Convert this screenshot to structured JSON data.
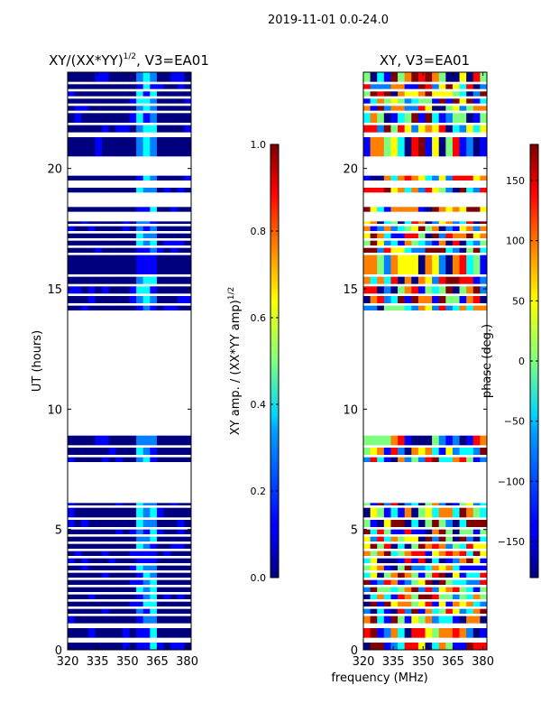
{
  "suptitle": "2019-11-01 0.0-24.0",
  "xlabel": "frequency (MHz)",
  "chart_data": [
    {
      "type": "heatmap",
      "title_main": "XY/(XX*YY)",
      "title_sup": "1/2",
      "title_tail": ", V3=EA01",
      "ylabel": "UT (hours)",
      "xlim": [
        320,
        382
      ],
      "ylim": [
        0,
        24
      ],
      "x_ticks": [
        320,
        335,
        350,
        365,
        380
      ],
      "y_ticks": [
        0,
        5,
        10,
        15,
        20
      ],
      "data_bands": [
        [
          0,
          0.3
        ],
        [
          0.5,
          0.9
        ],
        [
          1.1,
          1.4
        ],
        [
          1.5,
          1.7
        ],
        [
          1.8,
          2.0
        ],
        [
          2.1,
          2.3
        ],
        [
          2.4,
          2.6
        ],
        [
          2.7,
          2.9
        ],
        [
          3.0,
          3.2
        ],
        [
          3.3,
          3.5
        ],
        [
          3.6,
          3.8
        ],
        [
          3.9,
          4.1
        ],
        [
          4.2,
          4.4
        ],
        [
          4.5,
          4.7
        ],
        [
          4.8,
          5.0
        ],
        [
          5.1,
          5.4
        ],
        [
          5.5,
          5.9
        ],
        [
          6.0,
          6.1
        ],
        [
          7.8,
          8.0
        ],
        [
          8.1,
          8.4
        ],
        [
          8.5,
          8.9
        ],
        [
          14.1,
          14.3
        ],
        [
          14.4,
          14.7
        ],
        [
          14.8,
          15.1
        ],
        [
          15.2,
          15.5
        ],
        [
          15.6,
          16.4
        ],
        [
          16.5,
          16.7
        ],
        [
          16.8,
          17.0
        ],
        [
          17.1,
          17.3
        ],
        [
          17.4,
          17.6
        ],
        [
          17.7,
          17.8
        ],
        [
          18.2,
          18.4
        ],
        [
          19.0,
          19.2
        ],
        [
          19.5,
          19.7
        ],
        [
          20.5,
          21.3
        ],
        [
          21.5,
          21.8
        ],
        [
          21.9,
          22.3
        ],
        [
          22.4,
          22.6
        ],
        [
          22.7,
          22.9
        ],
        [
          23.0,
          23.2
        ],
        [
          23.3,
          23.5
        ],
        [
          23.6,
          24.0
        ]
      ],
      "cbar": {
        "label_main": "XY amp. / (XX*YY amp)",
        "label_sup": "1/2",
        "min": 0.0,
        "max": 1.0,
        "ticks": [
          "0.0",
          "0.2",
          "0.4",
          "0.6",
          "0.8",
          "1.0"
        ],
        "tick_values": [
          0.0,
          0.2,
          0.4,
          0.6,
          0.8,
          1.0
        ]
      }
    },
    {
      "type": "heatmap",
      "title": "XY, V3=EA01",
      "xlim": [
        320,
        382
      ],
      "ylim": [
        0,
        24
      ],
      "x_ticks": [
        320,
        335,
        350,
        365,
        380
      ],
      "y_ticks": [
        0,
        5,
        10,
        15,
        20
      ],
      "data_bands": [
        [
          0,
          0.3
        ],
        [
          0.5,
          0.9
        ],
        [
          1.1,
          1.4
        ],
        [
          1.5,
          1.7
        ],
        [
          1.8,
          2.0
        ],
        [
          2.1,
          2.3
        ],
        [
          2.4,
          2.6
        ],
        [
          2.7,
          2.9
        ],
        [
          3.0,
          3.2
        ],
        [
          3.3,
          3.5
        ],
        [
          3.6,
          3.8
        ],
        [
          3.9,
          4.1
        ],
        [
          4.2,
          4.4
        ],
        [
          4.5,
          4.7
        ],
        [
          4.8,
          5.0
        ],
        [
          5.1,
          5.4
        ],
        [
          5.5,
          5.9
        ],
        [
          6.0,
          6.1
        ],
        [
          7.8,
          8.0
        ],
        [
          8.1,
          8.4
        ],
        [
          8.5,
          8.9
        ],
        [
          14.1,
          14.3
        ],
        [
          14.4,
          14.7
        ],
        [
          14.8,
          15.1
        ],
        [
          15.2,
          15.5
        ],
        [
          15.6,
          16.4
        ],
        [
          16.5,
          16.7
        ],
        [
          16.8,
          17.0
        ],
        [
          17.1,
          17.3
        ],
        [
          17.4,
          17.6
        ],
        [
          17.7,
          17.8
        ],
        [
          18.2,
          18.4
        ],
        [
          19.0,
          19.2
        ],
        [
          19.5,
          19.7
        ],
        [
          20.5,
          21.3
        ],
        [
          21.5,
          21.8
        ],
        [
          21.9,
          22.3
        ],
        [
          22.4,
          22.6
        ],
        [
          22.7,
          22.9
        ],
        [
          23.0,
          23.2
        ],
        [
          23.3,
          23.5
        ],
        [
          23.6,
          24.0
        ]
      ],
      "cbar": {
        "label": "phase (deg.)",
        "min": -180,
        "max": 180,
        "ticks": [
          "−150",
          "−100",
          "−50",
          "0",
          "50",
          "100",
          "150"
        ],
        "tick_values": [
          -150,
          -100,
          -50,
          0,
          50,
          100,
          150
        ]
      }
    }
  ],
  "colors": {
    "jet": [
      "#00007f",
      "#0000ff",
      "#007fff",
      "#00ffff",
      "#7fff7f",
      "#ffff00",
      "#ff7f00",
      "#ff0000",
      "#7f0000"
    ],
    "frame": "#000000"
  }
}
